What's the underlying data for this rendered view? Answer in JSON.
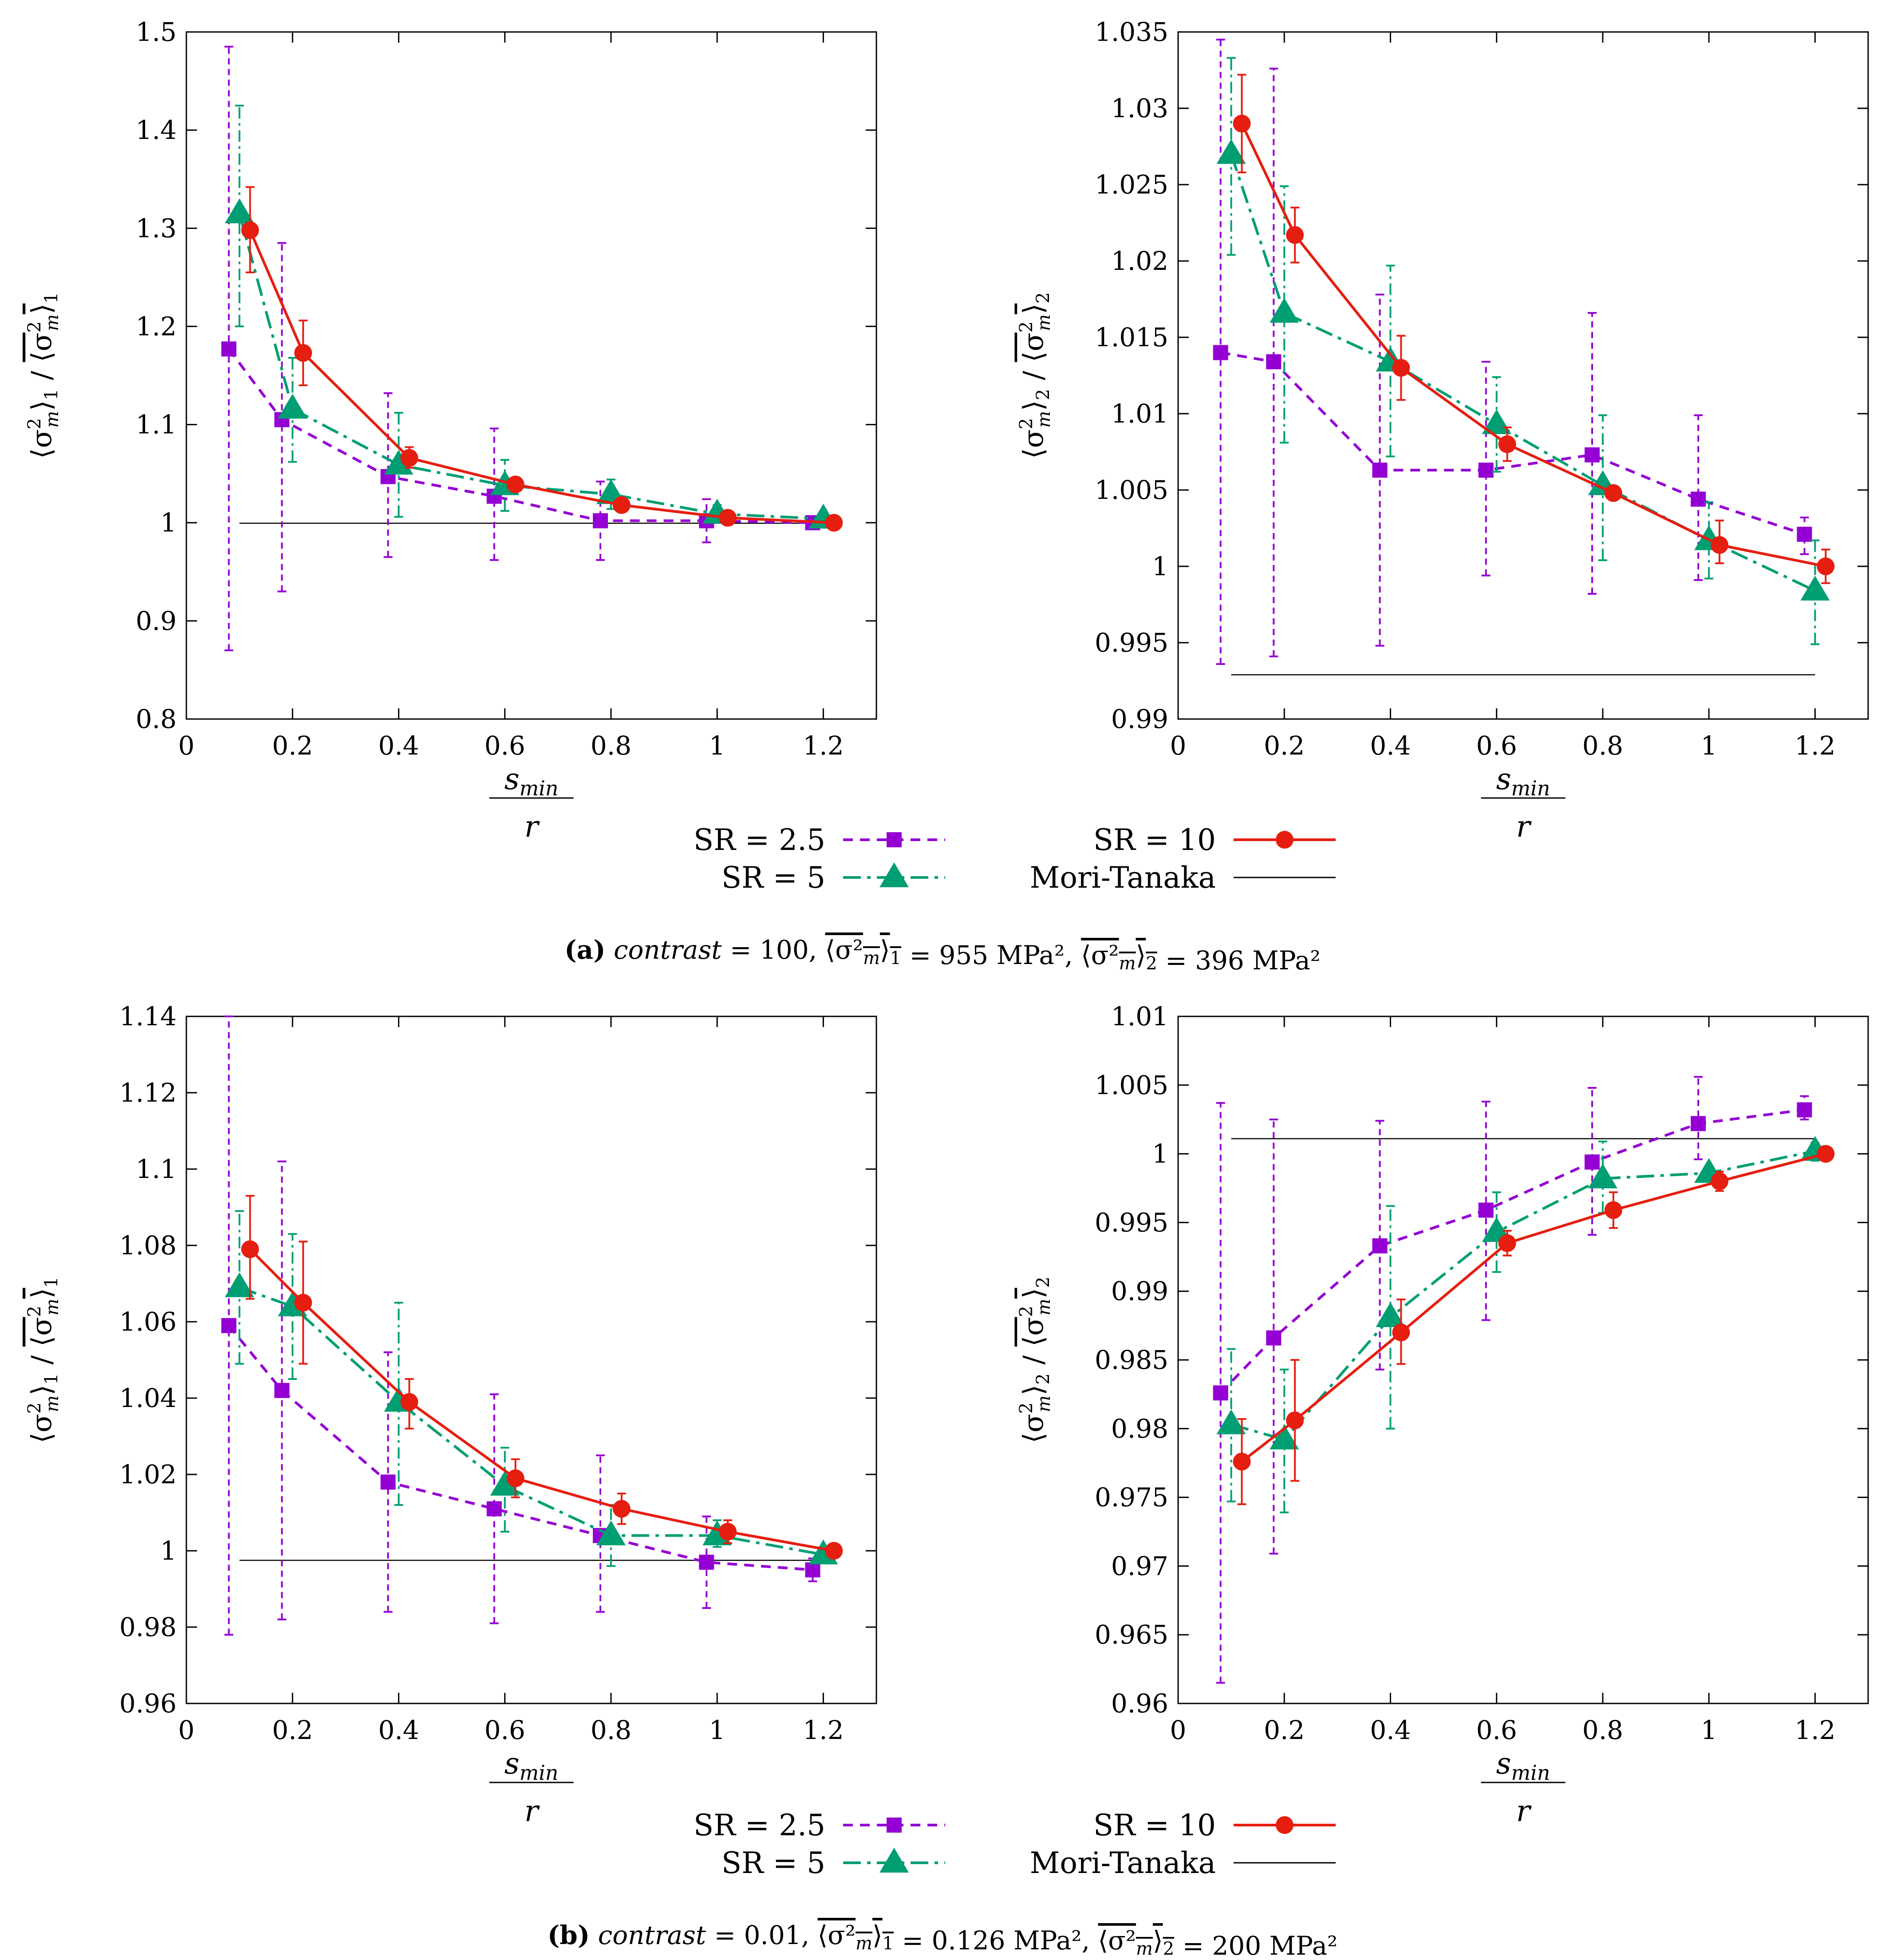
{
  "colors": {
    "sr2_5": "#9400d3",
    "sr5": "#009e73",
    "sr10": "#e51e10",
    "mori_tanaka": "#000000"
  },
  "common": {
    "xlabel_numerator": "s",
    "xlabel_subscript": "min",
    "xlabel_denominator": "r",
    "xticks": [
      "0",
      "0.2",
      "0.4",
      "0.6",
      "0.8",
      "1",
      "1.2"
    ],
    "xlim": [
      0,
      1.3
    ]
  },
  "legend": {
    "sr2_5": "SR = 2.5",
    "sr5": "SR = 5",
    "sr10": "SR = 10",
    "mori_tanaka": "Mori-Tanaka"
  },
  "captions": {
    "a": {
      "label": "(a)",
      "contrast_word": "contrast",
      "contrast_value": "= 100,",
      "mean1": "= 955 MPa²,",
      "mean2": "= 396 MPa²"
    },
    "b": {
      "label": "(b)",
      "contrast_word": "contrast",
      "contrast_value": "= 0.01,",
      "mean1": "= 0.126 MPa²,",
      "mean2": "= 200 MPa²"
    }
  },
  "chart_data": [
    {
      "type": "line",
      "panel": "a-left",
      "ylabel": "⟨σ²m⟩1 / ⟨σ²m⟩1 (mean)",
      "ylabel_index": "1",
      "ylim": [
        0.8,
        1.5
      ],
      "yticks": [
        "0.8",
        "0.9",
        "1",
        "1.1",
        "1.2",
        "1.3",
        "1.4",
        "1.5"
      ],
      "mori_tanaka": {
        "y": 0.9995,
        "x": [
          0.1,
          1.2
        ]
      },
      "series": [
        {
          "name": "SR = 2.5",
          "x": [
            0.08,
            0.18,
            0.38,
            0.58,
            0.78,
            0.98,
            1.18
          ],
          "y": [
            1.177,
            1.105,
            1.047,
            1.027,
            1.002,
            1.002,
            1.0
          ],
          "err_low": [
            0.87,
            0.93,
            0.965,
            0.962,
            0.962,
            0.98,
            0.995
          ],
          "err_high": [
            1.485,
            1.285,
            1.132,
            1.096,
            1.042,
            1.024,
            1.005
          ]
        },
        {
          "name": "SR = 5",
          "x": [
            0.1,
            0.2,
            0.4,
            0.6,
            0.8,
            1.0,
            1.2
          ],
          "y": [
            1.315,
            1.116,
            1.059,
            1.038,
            1.029,
            1.009,
            1.004
          ],
          "err_low": [
            1.2,
            1.062,
            1.006,
            1.012,
            1.014,
            1.0,
            1.0
          ],
          "err_high": [
            1.425,
            1.168,
            1.112,
            1.064,
            1.044,
            1.018,
            1.008
          ]
        },
        {
          "name": "SR = 10",
          "x": [
            0.12,
            0.22,
            0.42,
            0.62,
            0.82,
            1.02,
            1.22
          ],
          "y": [
            1.298,
            1.173,
            1.066,
            1.039,
            1.018,
            1.005,
            1.0
          ],
          "err_low": [
            1.255,
            1.14,
            1.056,
            1.033,
            1.014,
            1.002,
            1.0
          ],
          "err_high": [
            1.342,
            1.206,
            1.077,
            1.045,
            1.022,
            1.008,
            1.0
          ]
        }
      ]
    },
    {
      "type": "line",
      "panel": "a-right",
      "ylabel": "⟨σ²m⟩2 / ⟨σ²m⟩2 (mean)",
      "ylabel_index": "2",
      "ylim": [
        0.99,
        1.035
      ],
      "yticks": [
        "0.99",
        "0.995",
        "1",
        "1.005",
        "1.01",
        "1.015",
        "1.02",
        "1.025",
        "1.03",
        "1.035"
      ],
      "mori_tanaka": {
        "y": 0.9929,
        "x": [
          0.1,
          1.2
        ]
      },
      "series": [
        {
          "name": "SR = 2.5",
          "x": [
            0.08,
            0.18,
            0.38,
            0.58,
            0.78,
            0.98,
            1.18
          ],
          "y": [
            1.014,
            1.0134,
            1.0063,
            1.0063,
            1.0073,
            1.0044,
            1.0021
          ],
          "err_low": [
            0.9936,
            0.9941,
            0.9948,
            0.9994,
            0.9982,
            0.9991,
            1.0008
          ],
          "err_high": [
            1.0345,
            1.0326,
            1.0178,
            1.0134,
            1.0166,
            1.0099,
            1.0032
          ]
        },
        {
          "name": "SR = 5",
          "x": [
            0.1,
            0.2,
            0.4,
            0.6,
            0.8,
            1.0,
            1.2
          ],
          "y": [
            1.027,
            1.0166,
            1.0134,
            1.0093,
            1.0053,
            1.0017,
            0.9984
          ],
          "err_low": [
            1.0204,
            1.0081,
            1.0072,
            1.0062,
            1.0004,
            0.9992,
            0.9949
          ],
          "err_high": [
            1.0333,
            1.0249,
            1.0197,
            1.0124,
            1.0099,
            1.0042,
            1.0017
          ]
        },
        {
          "name": "SR = 10",
          "x": [
            0.12,
            0.22,
            0.42,
            0.62,
            0.82,
            1.02,
            1.22
          ],
          "y": [
            1.029,
            1.0217,
            1.013,
            1.008,
            1.0048,
            1.0014,
            1.0
          ],
          "err_low": [
            1.0258,
            1.0199,
            1.0109,
            1.0069,
            1.0044,
            1.0002,
            0.9989
          ],
          "err_high": [
            1.0322,
            1.0235,
            1.0151,
            1.0091,
            1.0052,
            1.003,
            1.0011
          ]
        }
      ]
    },
    {
      "type": "line",
      "panel": "b-left",
      "ylabel": "⟨σ²m⟩1 / ⟨σ²m⟩1 (mean)",
      "ylabel_index": "1",
      "ylim": [
        0.96,
        1.14
      ],
      "yticks": [
        "0.96",
        "0.98",
        "1",
        "1.02",
        "1.04",
        "1.06",
        "1.08",
        "1.1",
        "1.12",
        "1.14"
      ],
      "mori_tanaka": {
        "y": 0.9975,
        "x": [
          0.1,
          1.2
        ]
      },
      "series": [
        {
          "name": "SR = 2.5",
          "x": [
            0.08,
            0.18,
            0.38,
            0.58,
            0.78,
            0.98,
            1.18
          ],
          "y": [
            1.059,
            1.042,
            1.018,
            1.011,
            1.004,
            0.997,
            0.995
          ],
          "err_low": [
            0.978,
            0.982,
            0.984,
            0.981,
            0.984,
            0.985,
            0.992
          ],
          "err_high": [
            1.14,
            1.102,
            1.052,
            1.041,
            1.025,
            1.009,
            0.998
          ]
        },
        {
          "name": "SR = 5",
          "x": [
            0.1,
            0.2,
            0.4,
            0.6,
            0.8,
            1.0,
            1.2
          ],
          "y": [
            1.069,
            1.064,
            1.039,
            1.017,
            1.004,
            1.004,
            0.999
          ],
          "err_low": [
            1.049,
            1.045,
            1.012,
            1.005,
            0.996,
            1.001,
            0.998
          ],
          "err_high": [
            1.089,
            1.083,
            1.065,
            1.027,
            1.012,
            1.008,
            1.001
          ]
        },
        {
          "name": "SR = 10",
          "x": [
            0.12,
            0.22,
            0.42,
            0.62,
            0.82,
            1.02,
            1.22
          ],
          "y": [
            1.079,
            1.065,
            1.039,
            1.019,
            1.011,
            1.005,
            1.0
          ],
          "err_low": [
            1.066,
            1.049,
            1.032,
            1.014,
            1.007,
            1.002,
            1.0
          ],
          "err_high": [
            1.093,
            1.081,
            1.045,
            1.024,
            1.015,
            1.008,
            1.0
          ]
        }
      ]
    },
    {
      "type": "line",
      "panel": "b-right",
      "ylabel": "⟨σ²m⟩2 / ⟨σ²m⟩2 (mean)",
      "ylabel_index": "2",
      "ylim": [
        0.96,
        1.01
      ],
      "yticks": [
        "0.96",
        "0.965",
        "0.97",
        "0.975",
        "0.98",
        "0.985",
        "0.99",
        "0.995",
        "1",
        "1.005",
        "1.01"
      ],
      "mori_tanaka": {
        "y": 1.0011,
        "x": [
          0.1,
          1.2
        ]
      },
      "series": [
        {
          "name": "SR = 2.5",
          "x": [
            0.08,
            0.18,
            0.38,
            0.58,
            0.78,
            0.98,
            1.18
          ],
          "y": [
            0.9826,
            0.9866,
            0.9933,
            0.9959,
            0.9994,
            1.0022,
            1.0032
          ],
          "err_low": [
            0.9615,
            0.9709,
            0.9843,
            0.9879,
            0.9941,
            0.9996,
            1.0025
          ],
          "err_high": [
            1.0037,
            1.0025,
            1.0024,
            1.0038,
            1.0048,
            1.0056,
            1.0042
          ]
        },
        {
          "name": "SR = 5",
          "x": [
            0.1,
            0.2,
            0.4,
            0.6,
            0.8,
            1.0,
            1.2
          ],
          "y": [
            0.9803,
            0.9792,
            0.9881,
            0.9943,
            0.9982,
            0.9986,
            1.0002
          ],
          "err_low": [
            0.9747,
            0.9739,
            0.98,
            0.9914,
            0.9957,
            0.9981,
            0.9995
          ],
          "err_high": [
            0.9858,
            0.9843,
            0.9962,
            0.9972,
            1.0009,
            0.9991,
            1.0008
          ]
        },
        {
          "name": "SR = 10",
          "x": [
            0.12,
            0.22,
            0.42,
            0.62,
            0.82,
            1.02,
            1.22
          ],
          "y": [
            0.9776,
            0.9806,
            0.987,
            0.9935,
            0.9959,
            0.998,
            1.0
          ],
          "err_low": [
            0.9745,
            0.9762,
            0.9847,
            0.9926,
            0.9946,
            0.9973,
            0.9997
          ],
          "err_high": [
            0.9807,
            0.985,
            0.9894,
            0.9944,
            0.9972,
            0.9987,
            1.0003
          ]
        }
      ]
    }
  ]
}
